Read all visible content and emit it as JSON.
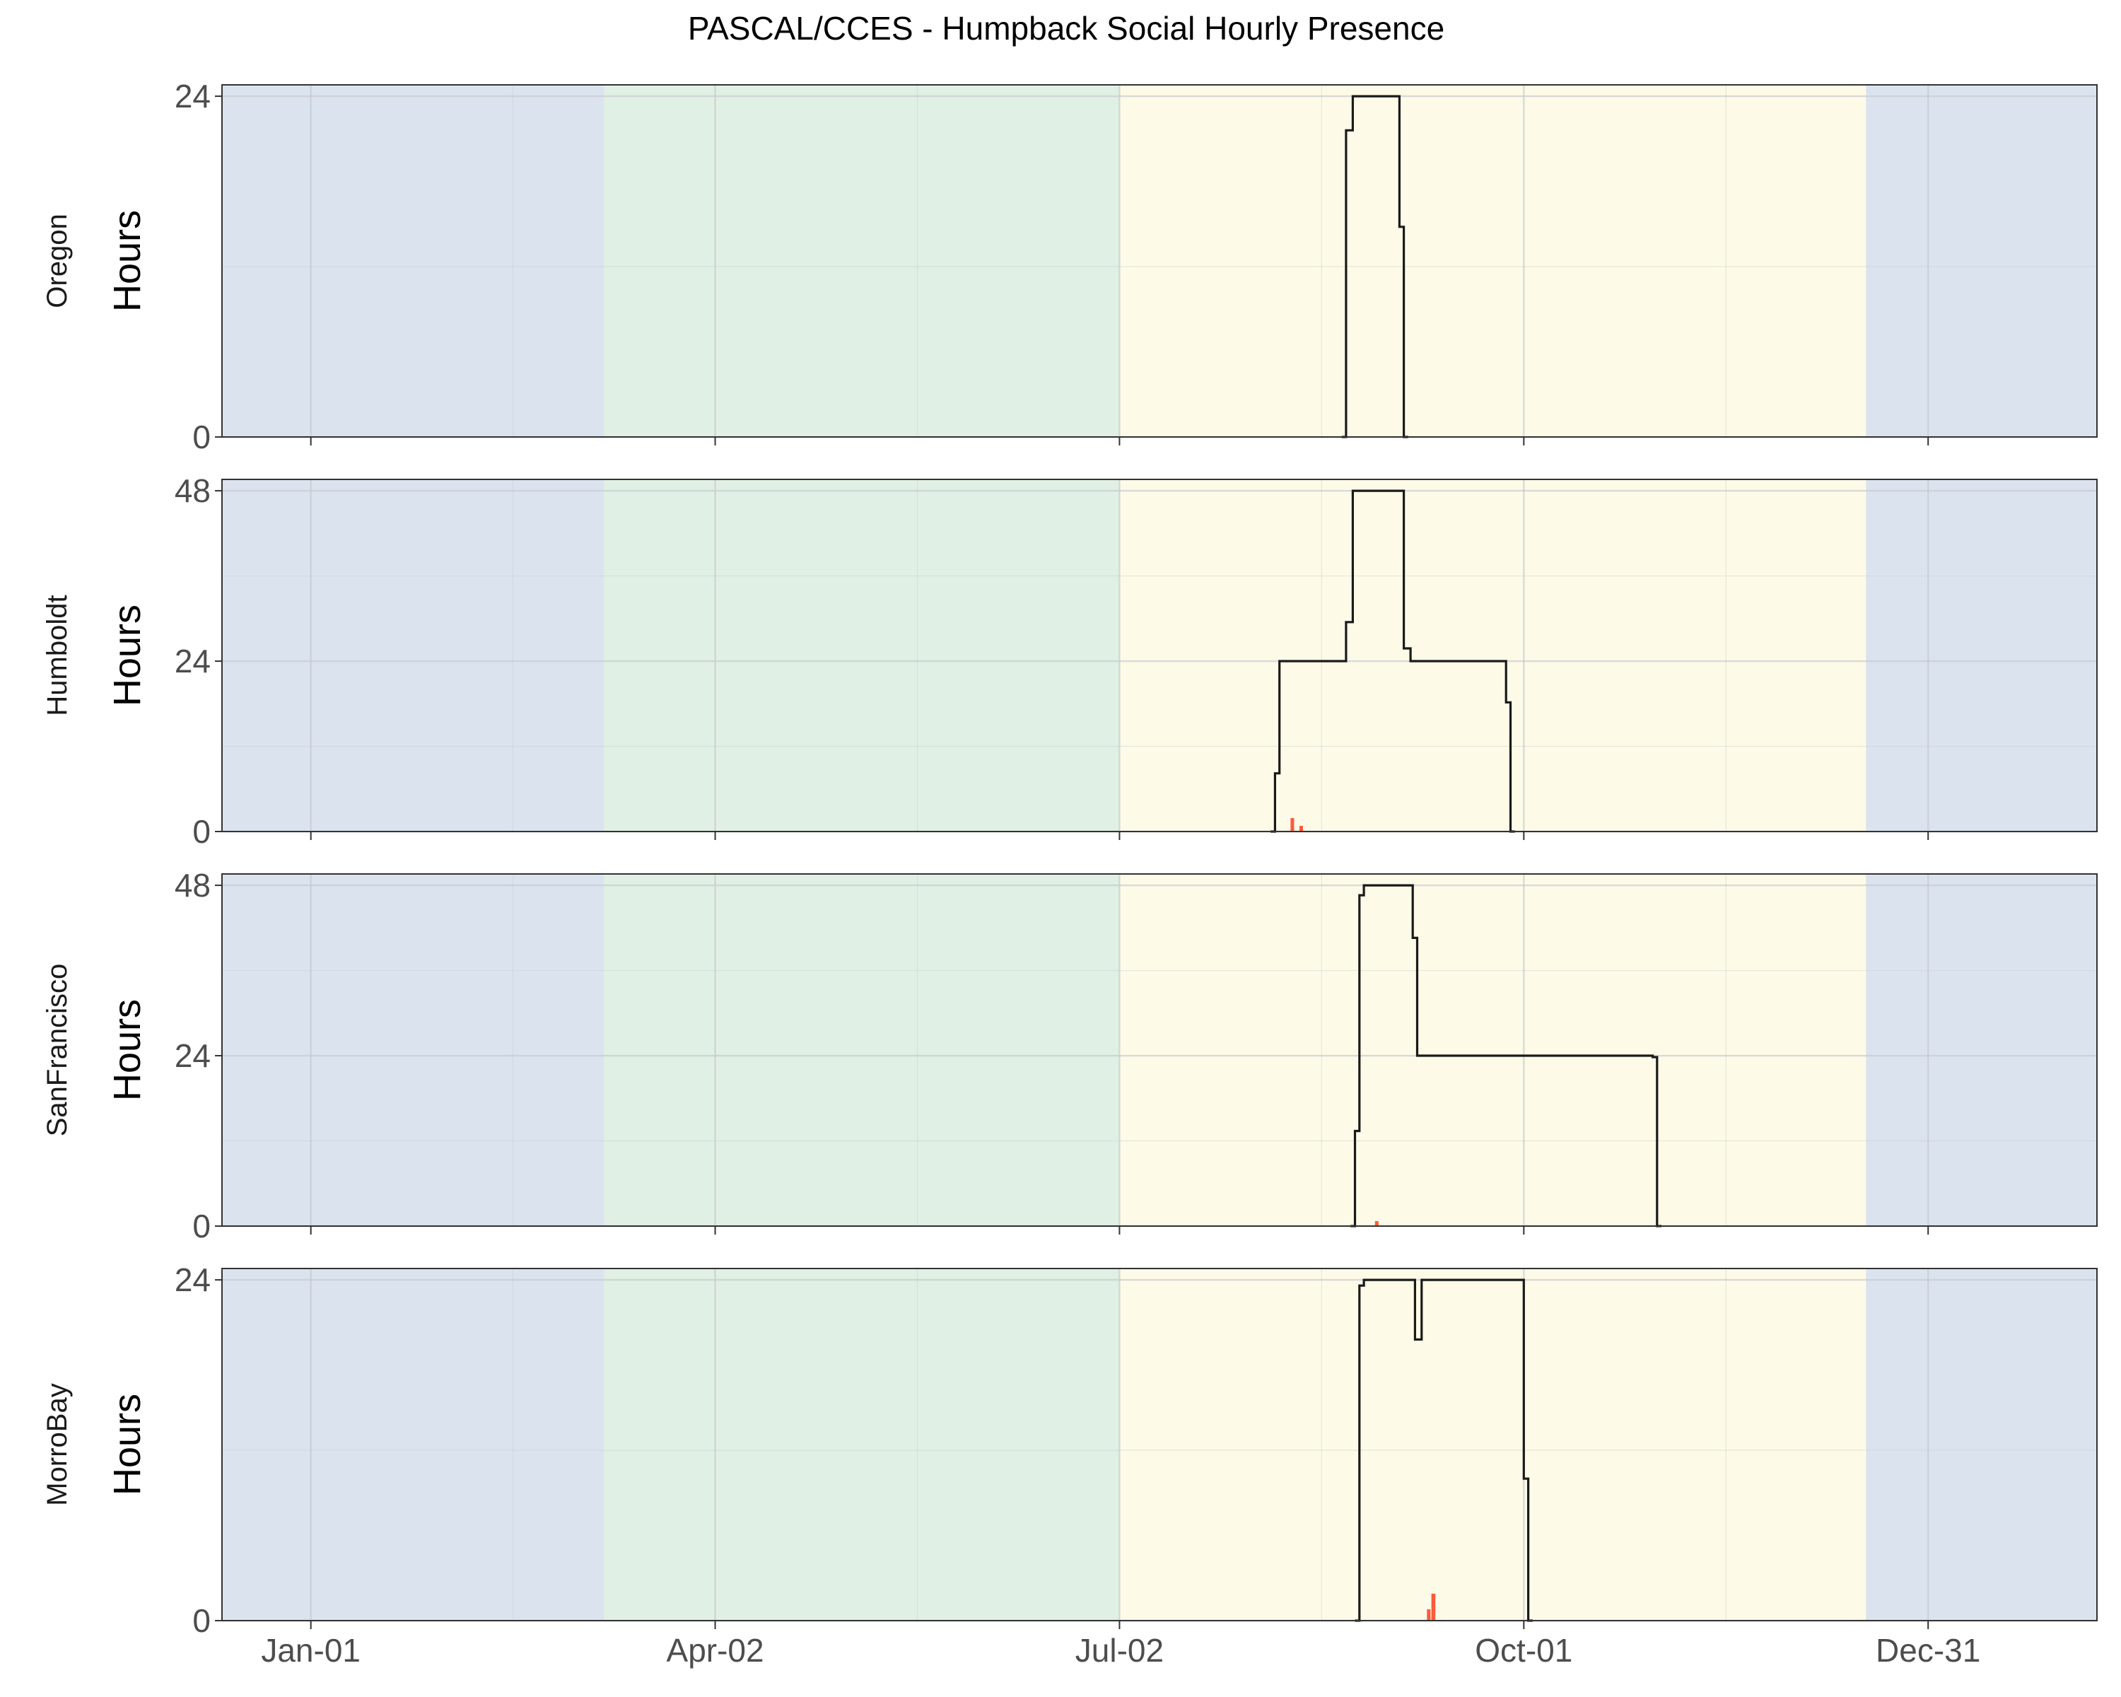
{
  "chart_data": {
    "type": "line",
    "title": "PASCAL/CCES - Humpback Social Hourly Presence",
    "x_ticks": [
      "Jan-01",
      "Apr-02",
      "Jul-02",
      "Oct-01",
      "Dec-31"
    ],
    "x_unit": "day of year",
    "season_bands": [
      {
        "start": -20,
        "end": 66,
        "color": "#dbe4ee"
      },
      {
        "start": 66,
        "end": 182,
        "color": "#e1f0e5"
      },
      {
        "start": 182,
        "end": 350,
        "color": "#fdfbe8"
      },
      {
        "start": 350,
        "end": 402,
        "color": "#dbe4ee"
      }
    ],
    "xlim": [
      -20,
      402
    ],
    "grid": true,
    "line_color": "#1a1a1a",
    "bar_color": "#ff5a3c",
    "panels": [
      {
        "strip": "Oregon",
        "ylabel": "Hours",
        "yticks": [
          0,
          24
        ],
        "ylim": [
          0,
          24.8
        ],
        "line": [
          [
            232,
            0
          ],
          [
            233,
            0
          ],
          [
            233,
            21.6
          ],
          [
            234.5,
            21.6
          ],
          [
            234.5,
            24
          ],
          [
            245,
            24
          ],
          [
            245,
            14.8
          ],
          [
            246,
            14.8
          ],
          [
            246,
            0
          ],
          [
            247,
            0
          ]
        ],
        "bars": []
      },
      {
        "strip": "Humboldt",
        "ylabel": "Hours",
        "yticks": [
          0,
          24,
          48
        ],
        "ylim": [
          0,
          49.6
        ],
        "line": [
          [
            216,
            0
          ],
          [
            217,
            0
          ],
          [
            217,
            8.2
          ],
          [
            218,
            8.2
          ],
          [
            218,
            24
          ],
          [
            233,
            24
          ],
          [
            233,
            29.5
          ],
          [
            234.5,
            29.5
          ],
          [
            234.5,
            48
          ],
          [
            246,
            48
          ],
          [
            246,
            25.8
          ],
          [
            247.5,
            25.8
          ],
          [
            247.5,
            24
          ],
          [
            269,
            24
          ],
          [
            269,
            18.2
          ],
          [
            270,
            18.2
          ],
          [
            270,
            0
          ],
          [
            271,
            0
          ]
        ],
        "bars": [
          {
            "x": 220.5,
            "width": 0.8,
            "y": 1.9
          },
          {
            "x": 222.5,
            "width": 0.8,
            "y": 0.8
          }
        ]
      },
      {
        "strip": "SanFrancisco",
        "ylabel": "Hours",
        "yticks": [
          0,
          24,
          48
        ],
        "ylim": [
          0,
          49.6
        ],
        "line": [
          [
            234,
            0
          ],
          [
            235,
            0
          ],
          [
            235,
            13.4
          ],
          [
            236,
            13.4
          ],
          [
            236,
            46.6
          ],
          [
            237,
            46.6
          ],
          [
            237,
            48
          ],
          [
            248,
            48
          ],
          [
            248,
            40.6
          ],
          [
            249,
            40.6
          ],
          [
            249,
            24
          ],
          [
            302,
            24
          ],
          [
            302,
            23.8
          ],
          [
            303,
            23.8
          ],
          [
            303,
            0
          ],
          [
            304,
            0
          ]
        ],
        "bars": [
          {
            "x": 239.5,
            "width": 0.8,
            "y": 0.7
          }
        ]
      },
      {
        "strip": "MorroBay",
        "ylabel": "Hours",
        "yticks": [
          0,
          24
        ],
        "ylim": [
          0,
          24.8
        ],
        "line": [
          [
            235,
            0
          ],
          [
            236,
            0
          ],
          [
            236,
            23.6
          ],
          [
            237,
            23.6
          ],
          [
            237,
            24
          ],
          [
            248.5,
            24
          ],
          [
            248.5,
            19.8
          ],
          [
            250,
            19.8
          ],
          [
            250,
            24
          ],
          [
            273,
            24
          ],
          [
            273,
            10
          ],
          [
            274,
            10
          ],
          [
            274,
            0
          ],
          [
            275,
            0
          ]
        ],
        "bars": [
          {
            "x": 251.2,
            "width": 0.8,
            "y": 0.8
          },
          {
            "x": 252.2,
            "width": 0.9,
            "y": 1.9
          }
        ]
      }
    ]
  }
}
